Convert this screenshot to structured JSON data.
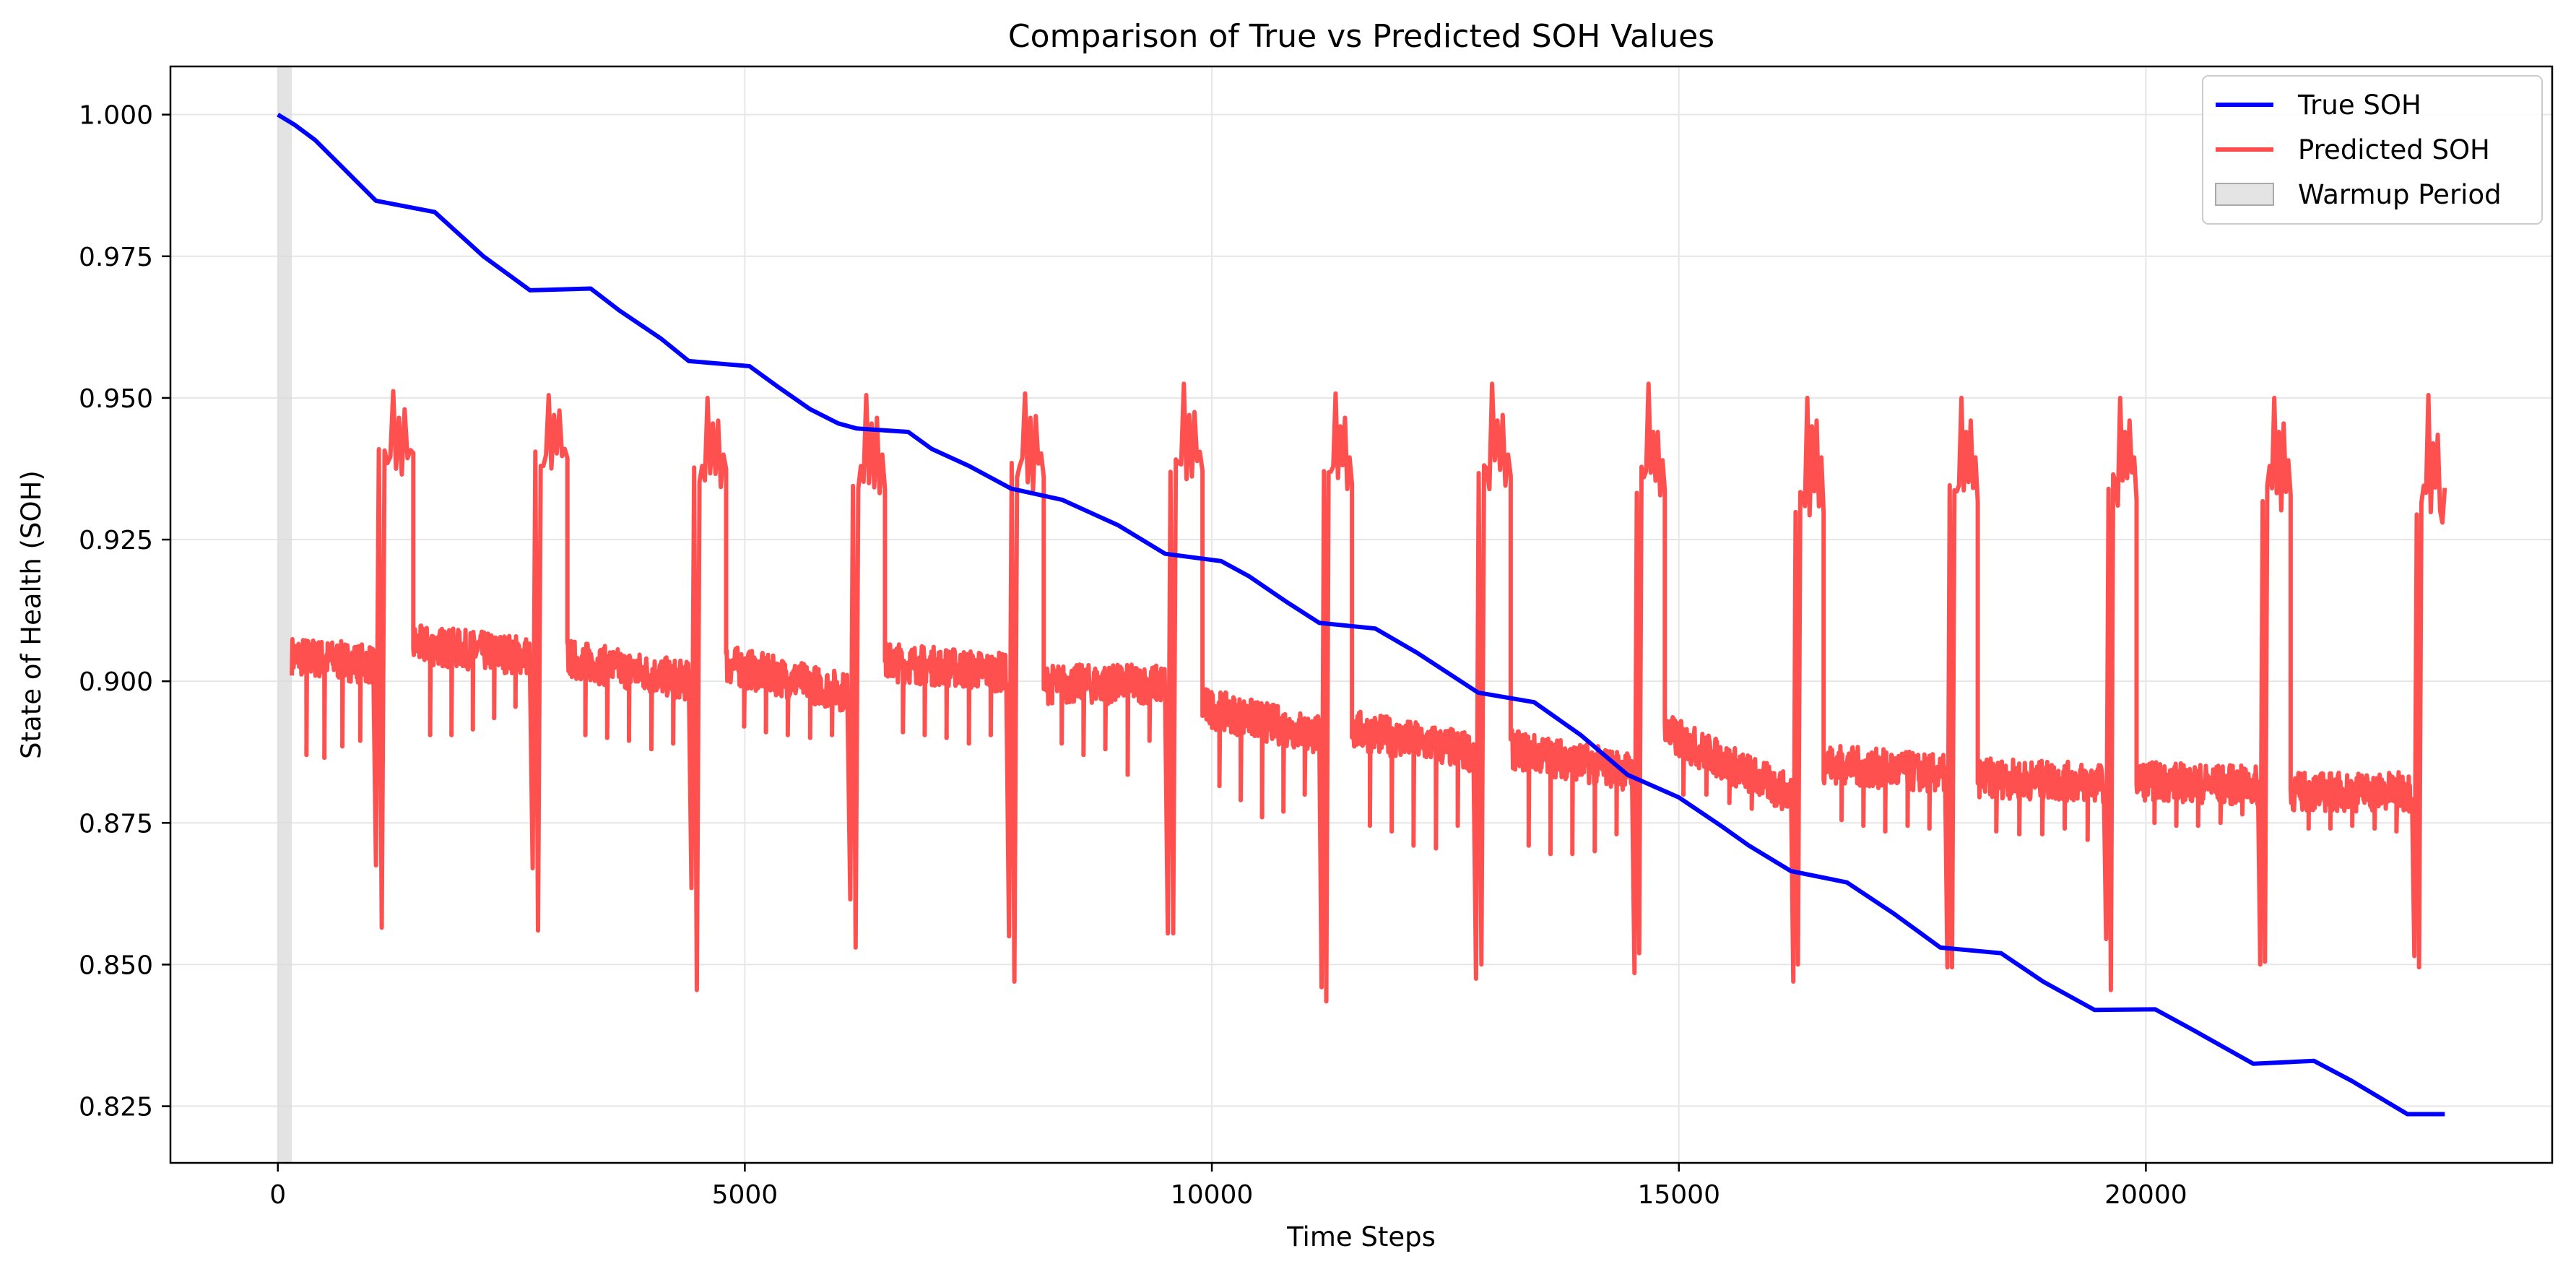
{
  "chart_data": {
    "type": "line",
    "title": "Comparison of True vs Predicted SOH Values",
    "xlabel": "Time Steps",
    "ylabel": "State of Health (SOH)",
    "xlim": [
      -1150,
      24350
    ],
    "ylim": [
      0.815,
      1.0085
    ],
    "x_ticks": [
      0,
      5000,
      10000,
      15000,
      20000
    ],
    "x_tick_labels": [
      "0",
      "5000",
      "10000",
      "15000",
      "20000"
    ],
    "y_ticks": [
      0.825,
      0.85,
      0.875,
      0.9,
      0.925,
      0.95,
      0.975,
      1.0
    ],
    "y_tick_labels": [
      "0.825",
      "0.850",
      "0.875",
      "0.900",
      "0.925",
      "0.950",
      "0.975",
      "1.000"
    ],
    "grid": true,
    "legend_position": "top-right",
    "warmup_period": {
      "name": "Warmup Period",
      "x_start": 0,
      "x_end": 150,
      "color": "#d9d9d9"
    },
    "series": [
      {
        "name": "True SOH",
        "color": "#0000ff",
        "x": [
          0,
          180,
          400,
          1050,
          1680,
          2200,
          2700,
          3350,
          3650,
          4100,
          4400,
          5050,
          5350,
          5700,
          6000,
          6200,
          6750,
          7000,
          7400,
          7850,
          8400,
          9000,
          9500,
          10100,
          10400,
          10800,
          11150,
          11750,
          12200,
          12850,
          13450,
          13950,
          14450,
          15000,
          15450,
          15750,
          16200,
          16800,
          17300,
          17800,
          18450,
          18900,
          19450,
          20100,
          20500,
          21150,
          21800,
          22200,
          22800,
          23200
        ],
        "y": [
          1.0,
          0.9982,
          0.9955,
          0.9848,
          0.9828,
          0.975,
          0.969,
          0.9693,
          0.9655,
          0.9605,
          0.9565,
          0.9556,
          0.952,
          0.948,
          0.9455,
          0.9446,
          0.944,
          0.941,
          0.938,
          0.934,
          0.932,
          0.9275,
          0.9225,
          0.9212,
          0.9185,
          0.914,
          0.9103,
          0.9093,
          0.905,
          0.898,
          0.8963,
          0.8905,
          0.8835,
          0.8795,
          0.8745,
          0.871,
          0.8665,
          0.8645,
          0.859,
          0.853,
          0.852,
          0.847,
          0.842,
          0.8421,
          0.8385,
          0.8325,
          0.833,
          0.8295,
          0.8236,
          0.8236
        ]
      },
      {
        "name": "Predicted SOH",
        "color": "#ff4d4d",
        "segments": [
          {
            "x0": 150,
            "x1": 1020,
            "base": 0.9045,
            "trend": -0.0015,
            "dips": [
              0.887,
              0.8865,
              0.8885,
              0.8895
            ]
          },
          {
            "x0": 1020,
            "x1": 1450,
            "base": 0.938,
            "trend": 0.0,
            "spikes": [
              0.8675,
              0.8565,
              0.9385,
              0.9512,
              0.9465,
              0.948,
              0.9408
            ]
          },
          {
            "x0": 1450,
            "x1": 2700,
            "base": 0.9065,
            "trend": -0.002,
            "dips": [
              0.8905,
              0.8905,
              0.8915,
              0.8935,
              0.8955
            ]
          },
          {
            "x0": 2700,
            "x1": 3100,
            "base": 0.938,
            "trend": 0.0,
            "spikes": [
              0.867,
              0.856,
              0.938,
              0.9505,
              0.947,
              0.9478,
              0.941
            ]
          },
          {
            "x0": 3100,
            "x1": 4400,
            "base": 0.904,
            "trend": -0.004,
            "dips": [
              0.8905,
              0.89,
              0.8895,
              0.888,
              0.889
            ]
          },
          {
            "x0": 4400,
            "x1": 4800,
            "base": 0.937,
            "trend": 0.0,
            "spikes": [
              0.8635,
              0.8455,
              0.938,
              0.95,
              0.9455,
              0.946,
              0.94
            ]
          },
          {
            "x0": 4800,
            "x1": 6100,
            "base": 0.903,
            "trend": -0.005,
            "dips": [
              0.892,
              0.891,
              0.8905,
              0.89,
              0.8905
            ]
          },
          {
            "x0": 6100,
            "x1": 6500,
            "base": 0.936,
            "trend": 0.0,
            "spikes": [
              0.8615,
              0.853,
              0.938,
              0.9505,
              0.9455,
              0.9465,
              0.94
            ]
          },
          {
            "x0": 6500,
            "x1": 7800,
            "base": 0.9035,
            "trend": -0.002,
            "dips": [
              0.891,
              0.8905,
              0.89,
              0.889,
              0.8905
            ]
          },
          {
            "x0": 7800,
            "x1": 8200,
            "base": 0.9365,
            "trend": 0.0,
            "spikes": [
              0.855,
              0.847,
              0.938,
              0.9508,
              0.9465,
              0.9468,
              0.9402
            ]
          },
          {
            "x0": 8200,
            "x1": 9500,
            "base": 0.8995,
            "trend": 0.0,
            "dips": [
              0.889,
              0.887,
              0.888,
              0.8835,
              0.8895
            ]
          },
          {
            "x0": 9500,
            "x1": 9900,
            "base": 0.937,
            "trend": 0.0,
            "spikes": [
              0.8555,
              0.8555,
              0.9385,
              0.9525,
              0.947,
              0.9475,
              0.9405
            ]
          },
          {
            "x0": 9900,
            "x1": 11150,
            "base": 0.8955,
            "trend": -0.005,
            "dips": [
              0.8815,
              0.879,
              0.876,
              0.877,
              0.88
            ]
          },
          {
            "x0": 11150,
            "x1": 11500,
            "base": 0.936,
            "trend": 0.0,
            "spikes": [
              0.846,
              0.8435,
              0.937,
              0.9508,
              0.945,
              0.9465,
              0.9395
            ]
          },
          {
            "x0": 11500,
            "x1": 12800,
            "base": 0.8915,
            "trend": -0.004,
            "dips": [
              0.8745,
              0.8735,
              0.871,
              0.8705,
              0.8745
            ]
          },
          {
            "x0": 12800,
            "x1": 13200,
            "base": 0.936,
            "trend": 0.0,
            "spikes": [
              0.8475,
              0.85,
              0.9375,
              0.9525,
              0.946,
              0.947,
              0.94
            ]
          },
          {
            "x0": 13200,
            "x1": 14500,
            "base": 0.888,
            "trend": -0.004,
            "dips": [
              0.871,
              0.8695,
              0.8695,
              0.87,
              0.873
            ]
          },
          {
            "x0": 14500,
            "x1": 14850,
            "base": 0.9355,
            "trend": 0.0,
            "spikes": [
              0.8485,
              0.852,
              0.936,
              0.9525,
              0.944,
              0.944,
              0.939
            ]
          },
          {
            "x0": 14850,
            "x1": 16200,
            "base": 0.891,
            "trend": -0.011,
            "dips": [
              0.88,
              0.88,
              0.8785,
              0.8775,
              0.878
            ]
          },
          {
            "x0": 16200,
            "x1": 16550,
            "base": 0.932,
            "trend": 0.0,
            "spikes": [
              0.847,
              0.85,
              0.933,
              0.95,
              0.945,
              0.946,
              0.9395
            ]
          },
          {
            "x0": 16550,
            "x1": 17850,
            "base": 0.8855,
            "trend": -0.002,
            "dips": [
              0.8755,
              0.8745,
              0.8735,
              0.8745,
              0.874
            ]
          },
          {
            "x0": 17850,
            "x1": 18200,
            "base": 0.933,
            "trend": 0.0,
            "spikes": [
              0.8495,
              0.8495,
              0.9335,
              0.95,
              0.944,
              0.946,
              0.9395
            ]
          },
          {
            "x0": 18200,
            "x1": 19550,
            "base": 0.883,
            "trend": -0.001,
            "dips": [
              0.8735,
              0.873,
              0.873,
              0.874,
              0.872
            ]
          },
          {
            "x0": 19550,
            "x1": 19900,
            "base": 0.934,
            "trend": 0.0,
            "spikes": [
              0.8545,
              0.8455,
              0.935,
              0.95,
              0.944,
              0.946,
              0.9395
            ]
          },
          {
            "x0": 19900,
            "x1": 21200,
            "base": 0.8825,
            "trend": -0.001,
            "dips": [
              0.875,
              0.8745,
              0.8745,
              0.875,
              0.8765
            ]
          },
          {
            "x0": 21200,
            "x1": 21550,
            "base": 0.933,
            "trend": 0.0,
            "spikes": [
              0.85,
              0.8505,
              0.938,
              0.95,
              0.944,
              0.9455,
              0.939
            ]
          },
          {
            "x0": 21550,
            "x1": 22850,
            "base": 0.8805,
            "trend": 0.0,
            "dips": [
              0.874,
              0.874,
              0.8745,
              0.874,
              0.8735
            ]
          },
          {
            "x0": 22850,
            "x1": 23200,
            "base": 0.932,
            "trend": 0.0,
            "spikes": [
              0.8515,
              0.8495,
              0.9345,
              0.9505,
              0.942,
              0.9435,
              0.928
            ]
          }
        ]
      }
    ]
  }
}
